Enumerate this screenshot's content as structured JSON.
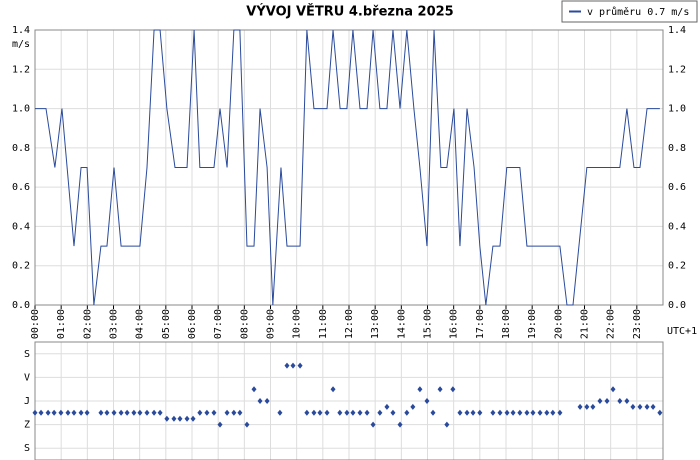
{
  "chart_data": [
    {
      "type": "line",
      "title": "VÝVOJ VĚTRU  4.března 2025",
      "y_label": "m/s",
      "x_label": "UTC+1",
      "x": [
        0,
        0.42,
        0.76,
        1.03,
        1.49,
        1.76,
        1.99,
        2.25,
        2.52,
        2.75,
        3.02,
        3.29,
        4.01,
        4.28,
        4.55,
        4.78,
        5.04,
        5.35,
        5.81,
        6.08,
        6.3,
        6.84,
        7.07,
        7.34,
        7.6,
        7.83,
        8.1,
        8.37,
        8.6,
        8.87,
        9.09,
        9.4,
        9.63,
        10.13,
        10.39,
        10.66,
        11.16,
        11.39,
        11.66,
        11.92,
        12.15,
        12.42,
        12.69,
        12.92,
        13.18,
        13.45,
        13.68,
        13.95,
        14.21,
        14.48,
        14.71,
        14.98,
        15.25,
        15.51,
        15.74,
        16.01,
        16.24,
        16.51,
        16.78,
        17.0,
        17.23,
        17.5,
        17.77,
        18.03,
        18.53,
        18.8,
        20.06,
        20.33,
        20.56,
        21.09,
        22.35,
        22.62,
        22.89,
        23.12,
        23.39,
        23.88
      ],
      "series": [
        {
          "name": "v průměru 0.7 m/s",
          "color": "#2a4a9c",
          "values": [
            1.0,
            1.0,
            0.7,
            1.0,
            0.3,
            0.7,
            0.7,
            0.0,
            0.3,
            0.3,
            0.7,
            0.3,
            0.3,
            0.7,
            1.4,
            1.4,
            1.0,
            0.7,
            0.7,
            1.4,
            0.7,
            0.7,
            1.0,
            0.7,
            1.4,
            1.4,
            0.3,
            0.3,
            1.0,
            0.7,
            0.0,
            0.7,
            0.3,
            0.3,
            1.4,
            1.0,
            1.0,
            1.4,
            1.0,
            1.0,
            1.4,
            1.0,
            1.0,
            1.4,
            1.0,
            1.0,
            1.4,
            1.0,
            1.4,
            1.0,
            0.7,
            0.3,
            1.4,
            0.7,
            0.7,
            1.0,
            0.3,
            1.0,
            0.7,
            0.3,
            0.0,
            0.3,
            0.3,
            0.7,
            0.7,
            0.3,
            0.3,
            0.0,
            0.0,
            0.7,
            0.7,
            1.0,
            0.7,
            0.7,
            1.0,
            1.0
          ]
        }
      ],
      "xlim": [
        0,
        24
      ],
      "xticks": [
        {
          "value": 0,
          "label": "00:00"
        },
        {
          "value": 1,
          "label": "01:00"
        },
        {
          "value": 2,
          "label": "02:00"
        },
        {
          "value": 3,
          "label": "03:00"
        },
        {
          "value": 4,
          "label": "04:00"
        },
        {
          "value": 5,
          "label": "05:00"
        },
        {
          "value": 6,
          "label": "06:00"
        },
        {
          "value": 7,
          "label": "07:00"
        },
        {
          "value": 8,
          "label": "08:00"
        },
        {
          "value": 9,
          "label": "09:00"
        },
        {
          "value": 10,
          "label": "10:00"
        },
        {
          "value": 11,
          "label": "11:00"
        },
        {
          "value": 12,
          "label": "12:00"
        },
        {
          "value": 13,
          "label": "13:00"
        },
        {
          "value": 14,
          "label": "14:00"
        },
        {
          "value": 15,
          "label": "15:00"
        },
        {
          "value": 16,
          "label": "16:00"
        },
        {
          "value": 17,
          "label": "17:00"
        },
        {
          "value": 18,
          "label": "18:00"
        },
        {
          "value": 19,
          "label": "19:00"
        },
        {
          "value": 20,
          "label": "20:00"
        },
        {
          "value": 21,
          "label": "21:00"
        },
        {
          "value": 22,
          "label": "22:00"
        },
        {
          "value": 23,
          "label": "23:00"
        }
      ],
      "ylim": [
        0,
        1.4
      ],
      "yticks": [
        {
          "value": 0,
          "label": "0.0"
        },
        0.2,
        0.4,
        0.6,
        0.8,
        {
          "value": 1,
          "label": "1.0"
        },
        1.2,
        1.4
      ],
      "grid": true,
      "legend": "top-right"
    },
    {
      "type": "scatter",
      "color": "#2a4a9c",
      "x": [
        0,
        0.23,
        0.5,
        0.73,
        0.99,
        1.26,
        1.49,
        1.76,
        1.99,
        2.52,
        2.75,
        3.02,
        3.29,
        3.52,
        3.78,
        4.01,
        4.28,
        4.55,
        4.78,
        5.04,
        5.31,
        5.54,
        5.81,
        6.04,
        6.3,
        6.57,
        6.84,
        7.07,
        7.34,
        7.6,
        7.83,
        8.1,
        8.37,
        8.6,
        8.87,
        9.36,
        9.63,
        9.86,
        10.13,
        10.39,
        10.66,
        10.89,
        11.16,
        11.39,
        11.65,
        11.92,
        12.15,
        12.42,
        12.69,
        12.92,
        13.18,
        13.45,
        13.68,
        13.95,
        14.21,
        14.44,
        14.71,
        14.98,
        15.21,
        15.48,
        15.74,
        15.97,
        16.24,
        16.51,
        16.74,
        17.0,
        17.5,
        17.77,
        18.04,
        18.27,
        18.53,
        18.8,
        19.03,
        19.3,
        19.56,
        19.79,
        20.06,
        20.83,
        21.09,
        21.32,
        21.59,
        21.86,
        22.09,
        22.35,
        22.62,
        22.85,
        23.12,
        23.39,
        23.62,
        23.88
      ],
      "values": [
        225,
        225,
        225,
        225,
        225,
        225,
        225,
        225,
        225,
        225,
        225,
        225,
        225,
        225,
        225,
        225,
        225,
        225,
        225,
        247.5,
        247.5,
        247.5,
        247.5,
        247.5,
        225,
        225,
        225,
        270,
        225,
        225,
        225,
        270,
        135,
        180,
        180,
        225,
        45,
        45,
        45,
        225,
        225,
        225,
        225,
        135,
        225,
        225,
        225,
        225,
        225,
        270,
        225,
        202.5,
        225,
        270,
        225,
        202.5,
        135,
        180,
        225,
        135,
        270,
        135,
        225,
        225,
        225,
        225,
        225,
        225,
        225,
        225,
        225,
        225,
        225,
        225,
        225,
        225,
        225,
        202.5,
        202.5,
        202.5,
        180,
        180,
        135,
        180,
        180,
        202.5,
        202.5,
        202.5,
        202.5,
        225
      ],
      "xlim": [
        0,
        24
      ],
      "ylim": [
        -45,
        405
      ],
      "invert_y": true,
      "yticks": [
        {
          "value": 0,
          "label": "S"
        },
        {
          "value": 90,
          "label": "V"
        },
        {
          "value": 180,
          "label": "J"
        },
        {
          "value": 270,
          "label": "Z"
        },
        {
          "value": 360,
          "label": "S"
        }
      ],
      "grid": true
    }
  ]
}
